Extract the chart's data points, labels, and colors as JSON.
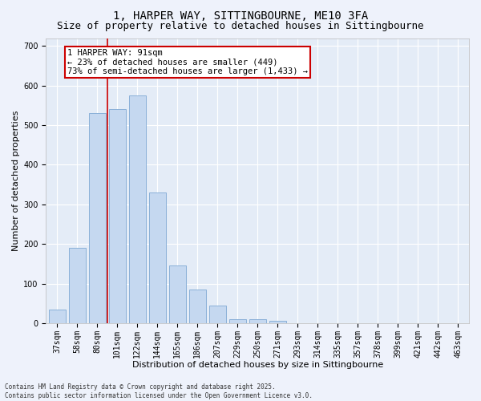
{
  "title_line1": "1, HARPER WAY, SITTINGBOURNE, ME10 3FA",
  "title_line2": "Size of property relative to detached houses in Sittingbourne",
  "xlabel": "Distribution of detached houses by size in Sittingbourne",
  "ylabel": "Number of detached properties",
  "categories": [
    "37sqm",
    "58sqm",
    "80sqm",
    "101sqm",
    "122sqm",
    "144sqm",
    "165sqm",
    "186sqm",
    "207sqm",
    "229sqm",
    "250sqm",
    "271sqm",
    "293sqm",
    "314sqm",
    "335sqm",
    "357sqm",
    "378sqm",
    "399sqm",
    "421sqm",
    "442sqm",
    "463sqm"
  ],
  "values": [
    35,
    190,
    530,
    540,
    575,
    330,
    145,
    85,
    45,
    10,
    10,
    5,
    0,
    0,
    0,
    0,
    0,
    0,
    0,
    0,
    0
  ],
  "bar_color": "#c5d8f0",
  "bar_edge_color": "#8ab0d8",
  "vline_x": 2.5,
  "vline_color": "#cc0000",
  "annotation_text": "1 HARPER WAY: 91sqm\n← 23% of detached houses are smaller (449)\n73% of semi-detached houses are larger (1,433) →",
  "annotation_box_color": "#ffffff",
  "annotation_box_edge": "#cc0000",
  "ylim": [
    0,
    720
  ],
  "yticks": [
    0,
    100,
    200,
    300,
    400,
    500,
    600,
    700
  ],
  "footer_line1": "Contains HM Land Registry data © Crown copyright and database right 2025.",
  "footer_line2": "Contains public sector information licensed under the Open Government Licence v3.0.",
  "bg_color": "#eef2fb",
  "plot_bg_color": "#e4ecf7",
  "grid_color": "#ffffff",
  "title_fontsize": 10,
  "subtitle_fontsize": 9,
  "tick_fontsize": 7,
  "label_fontsize": 8,
  "annotation_fontsize": 7.5
}
